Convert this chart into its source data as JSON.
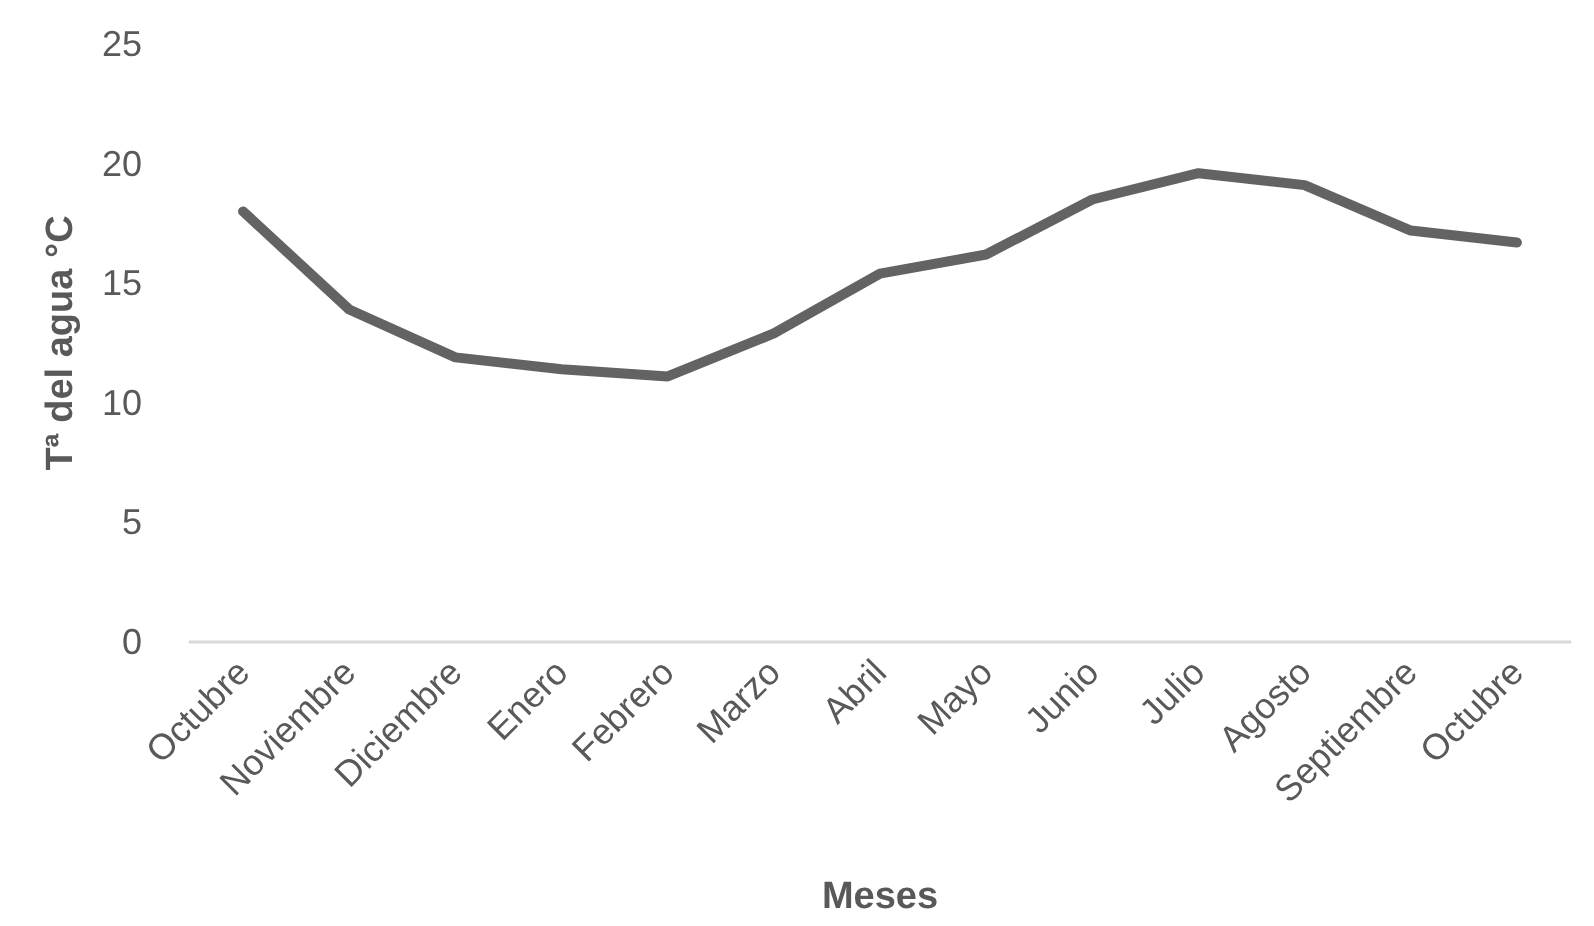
{
  "chart_data": {
    "type": "line",
    "xlabel": "Meses",
    "ylabel": "Tª del agua °C",
    "categories": [
      "Octubre",
      "Noviembre",
      "Diciembre",
      "Enero",
      "Febrero",
      "Marzo",
      "Abril",
      "Mayo",
      "Junio",
      "Julio",
      "Agosto",
      "Septiembre",
      "Octubre"
    ],
    "series": [
      {
        "color": "#636363",
        "values": [
          18.0,
          13.9,
          11.9,
          11.4,
          11.1,
          12.9,
          15.4,
          16.2,
          18.5,
          19.6,
          19.1,
          17.2,
          16.7
        ]
      }
    ],
    "ylim": [
      0,
      25
    ],
    "yticks": [
      0,
      5,
      10,
      15,
      20,
      25
    ],
    "grid": false,
    "marker": "none",
    "line_style": "solid"
  }
}
